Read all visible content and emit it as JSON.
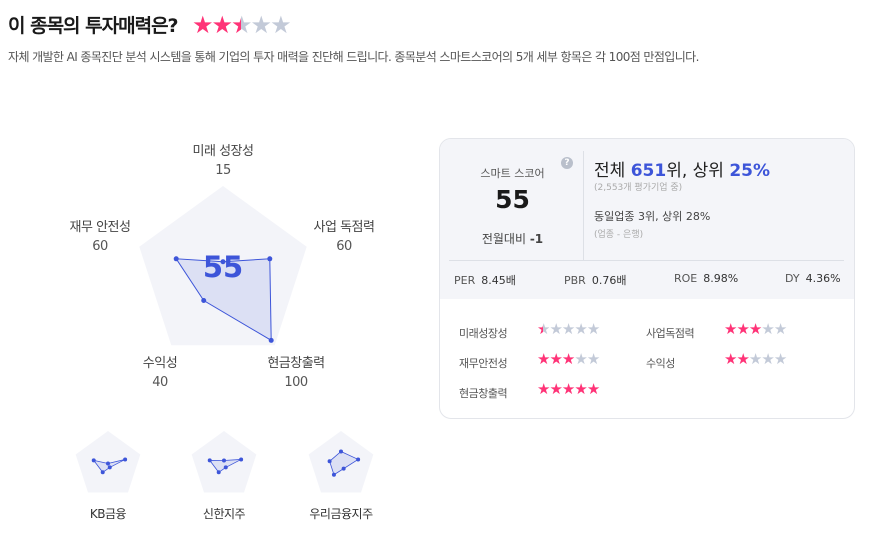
{
  "header": {
    "title": "이 종목의 투자매력은?",
    "rating": 2.5,
    "rating_max": 5,
    "description": "자체 개발한 AI 종목진단 분석 시스템을 통해 기업의 투자 매력을 진단해 드립니다. 종목분석 스마트스코어의 5개 세부 항목은 각 100점 만점입니다."
  },
  "colors": {
    "accent": "#3d55d9",
    "star_on": "#ff3377",
    "star_off": "#c3cad8",
    "pentagon_bg": "#f3f4f9"
  },
  "radar": {
    "score": "55",
    "axes": [
      {
        "label": "미래 성장성",
        "value": 15
      },
      {
        "label": "사업 독점력",
        "value": 60
      },
      {
        "label": "현금창출력",
        "value": 100
      },
      {
        "label": "수익성",
        "value": 40
      },
      {
        "label": "재무 안전성",
        "value": 60
      }
    ]
  },
  "peers": [
    {
      "name": "KB금융",
      "values": [
        5,
        60,
        10,
        30,
        50
      ]
    },
    {
      "name": "신한지주",
      "values": [
        15,
        60,
        10,
        30,
        50
      ]
    },
    {
      "name": "우리금융지주",
      "values": [
        45,
        60,
        15,
        40,
        40
      ]
    }
  ],
  "card": {
    "smart_score_label": "스마트 스코어",
    "help_icon": "?",
    "smart_score": "55",
    "mom_label": "전월대비",
    "mom_value": "-1",
    "rank_prefix": "전체 ",
    "rank_value": "651",
    "rank_mid": "위, 상위 ",
    "rank_pct": "25%",
    "rank_sub": "(2,553개 평가기업 중)",
    "industry_rank": "동일업종 3위, 상위 28%",
    "industry_sub": "(업종 - 은행)",
    "metrics": [
      {
        "label": "PER",
        "value": "8.45배"
      },
      {
        "label": "PBR",
        "value": "0.76배"
      },
      {
        "label": "ROE",
        "value": "8.98%"
      },
      {
        "label": "DY",
        "value": "4.36%"
      }
    ],
    "ratings": [
      {
        "label": "미래성장성",
        "stars": 0.5
      },
      {
        "label": "사업독점력",
        "stars": 3
      },
      {
        "label": "재무안전성",
        "stars": 3
      },
      {
        "label": "수익성",
        "stars": 2
      },
      {
        "label": "현금창출력",
        "stars": 5
      }
    ]
  }
}
